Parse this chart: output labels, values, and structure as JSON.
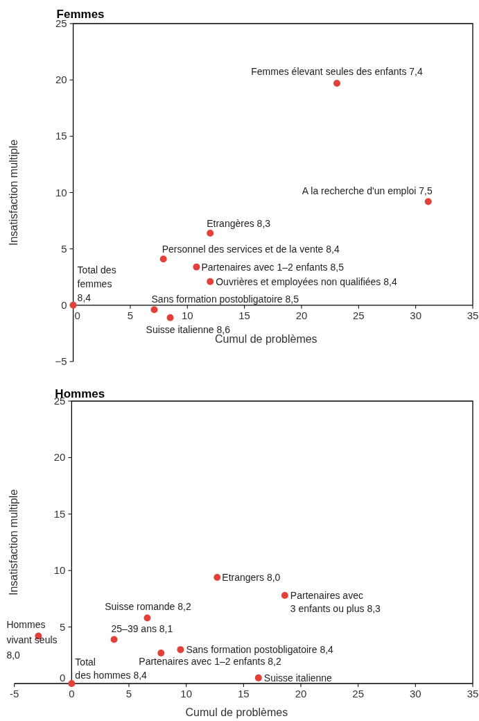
{
  "chart_data": [
    {
      "type": "scatter",
      "title": "Femmes",
      "xlabel": "Cumul de problèmes",
      "ylabel": "Insatisfaction multiple",
      "color": "#e2403a",
      "marker": "circle",
      "x": [
        23.1,
        31.1,
        12.0,
        7.9,
        10.8,
        12.0,
        0,
        7.1,
        8.5
      ],
      "values": [
        19.7,
        9.2,
        6.4,
        4.1,
        3.4,
        2.1,
        0,
        -0.4,
        -1.1
      ],
      "xlim": [
        0,
        35
      ],
      "ylim": [
        -5,
        25
      ],
      "xticks": [
        0,
        5,
        10,
        15,
        20,
        25,
        30,
        35
      ],
      "yticks": [
        -5,
        0,
        5,
        10,
        15,
        20,
        25
      ],
      "annotations": [
        {
          "text": "Femmes élevant seules des enfants 7,4",
          "x": 23.1,
          "y": 19.7
        },
        {
          "text": "A la recherche d'un emploi 7,5",
          "x": 31.1,
          "y": 9.2
        },
        {
          "text": "Etrangères 8,3",
          "x": 12.0,
          "y": 6.4
        },
        {
          "text": "Personnel des services et de la vente 8,4",
          "x": 7.9,
          "y": 4.1
        },
        {
          "text": "Partenaires avec 1–2 enfants 8,5",
          "x": 10.8,
          "y": 3.4
        },
        {
          "text": "Ouvrières et employées non qualifiées 8,4",
          "x": 12.0,
          "y": 2.1
        },
        {
          "text": "Total des\nfemmes\n8,4",
          "x": 0,
          "y": 0
        },
        {
          "text": "Sans formation postobligatoire 8,5",
          "x": 7.1,
          "y": -0.4
        },
        {
          "text": "Suisse italienne 8,6",
          "x": 8.5,
          "y": -1.1
        }
      ]
    },
    {
      "type": "scatter",
      "title": "Hommes",
      "xlabel": "Cumul de problèmes",
      "ylabel": "Insatisfaction multiple",
      "color": "#e2403a",
      "marker": "circle",
      "x": [
        12.7,
        18.6,
        6.6,
        -2.9,
        3.7,
        9.5,
        7.8,
        16.3,
        0
      ],
      "values": [
        9.4,
        7.8,
        5.8,
        4.2,
        3.9,
        3.0,
        2.7,
        0.5,
        0
      ],
      "xlim": [
        -5,
        35
      ],
      "ylim": [
        0,
        25
      ],
      "xticks": [
        -5,
        0,
        5,
        10,
        15,
        20,
        25,
        30,
        35
      ],
      "yticks": [
        0,
        5,
        10,
        15,
        20,
        25
      ],
      "annotations": [
        {
          "text": "Etrangers 8,0",
          "x": 12.7,
          "y": 9.4
        },
        {
          "text": "Partenaires avec\n3 enfants ou plus 8,3",
          "x": 18.6,
          "y": 7.8
        },
        {
          "text": "Suisse romande 8,2",
          "x": 6.6,
          "y": 5.8
        },
        {
          "text": "Hommes\nvivant seuls\n8,0",
          "x": -2.9,
          "y": 4.2
        },
        {
          "text": "25–39 ans 8,1",
          "x": 3.7,
          "y": 3.9
        },
        {
          "text": "Sans formation postobligatoire 8,4",
          "x": 9.5,
          "y": 3.0
        },
        {
          "text": "Partenaires avec 1–2 enfants 8,2",
          "x": 7.8,
          "y": 2.7
        },
        {
          "text": "Suisse italienne",
          "x": 16.3,
          "y": 0.5
        },
        {
          "text": "Total\ndes hommes 8,4",
          "x": 0,
          "y": 0
        }
      ]
    }
  ]
}
